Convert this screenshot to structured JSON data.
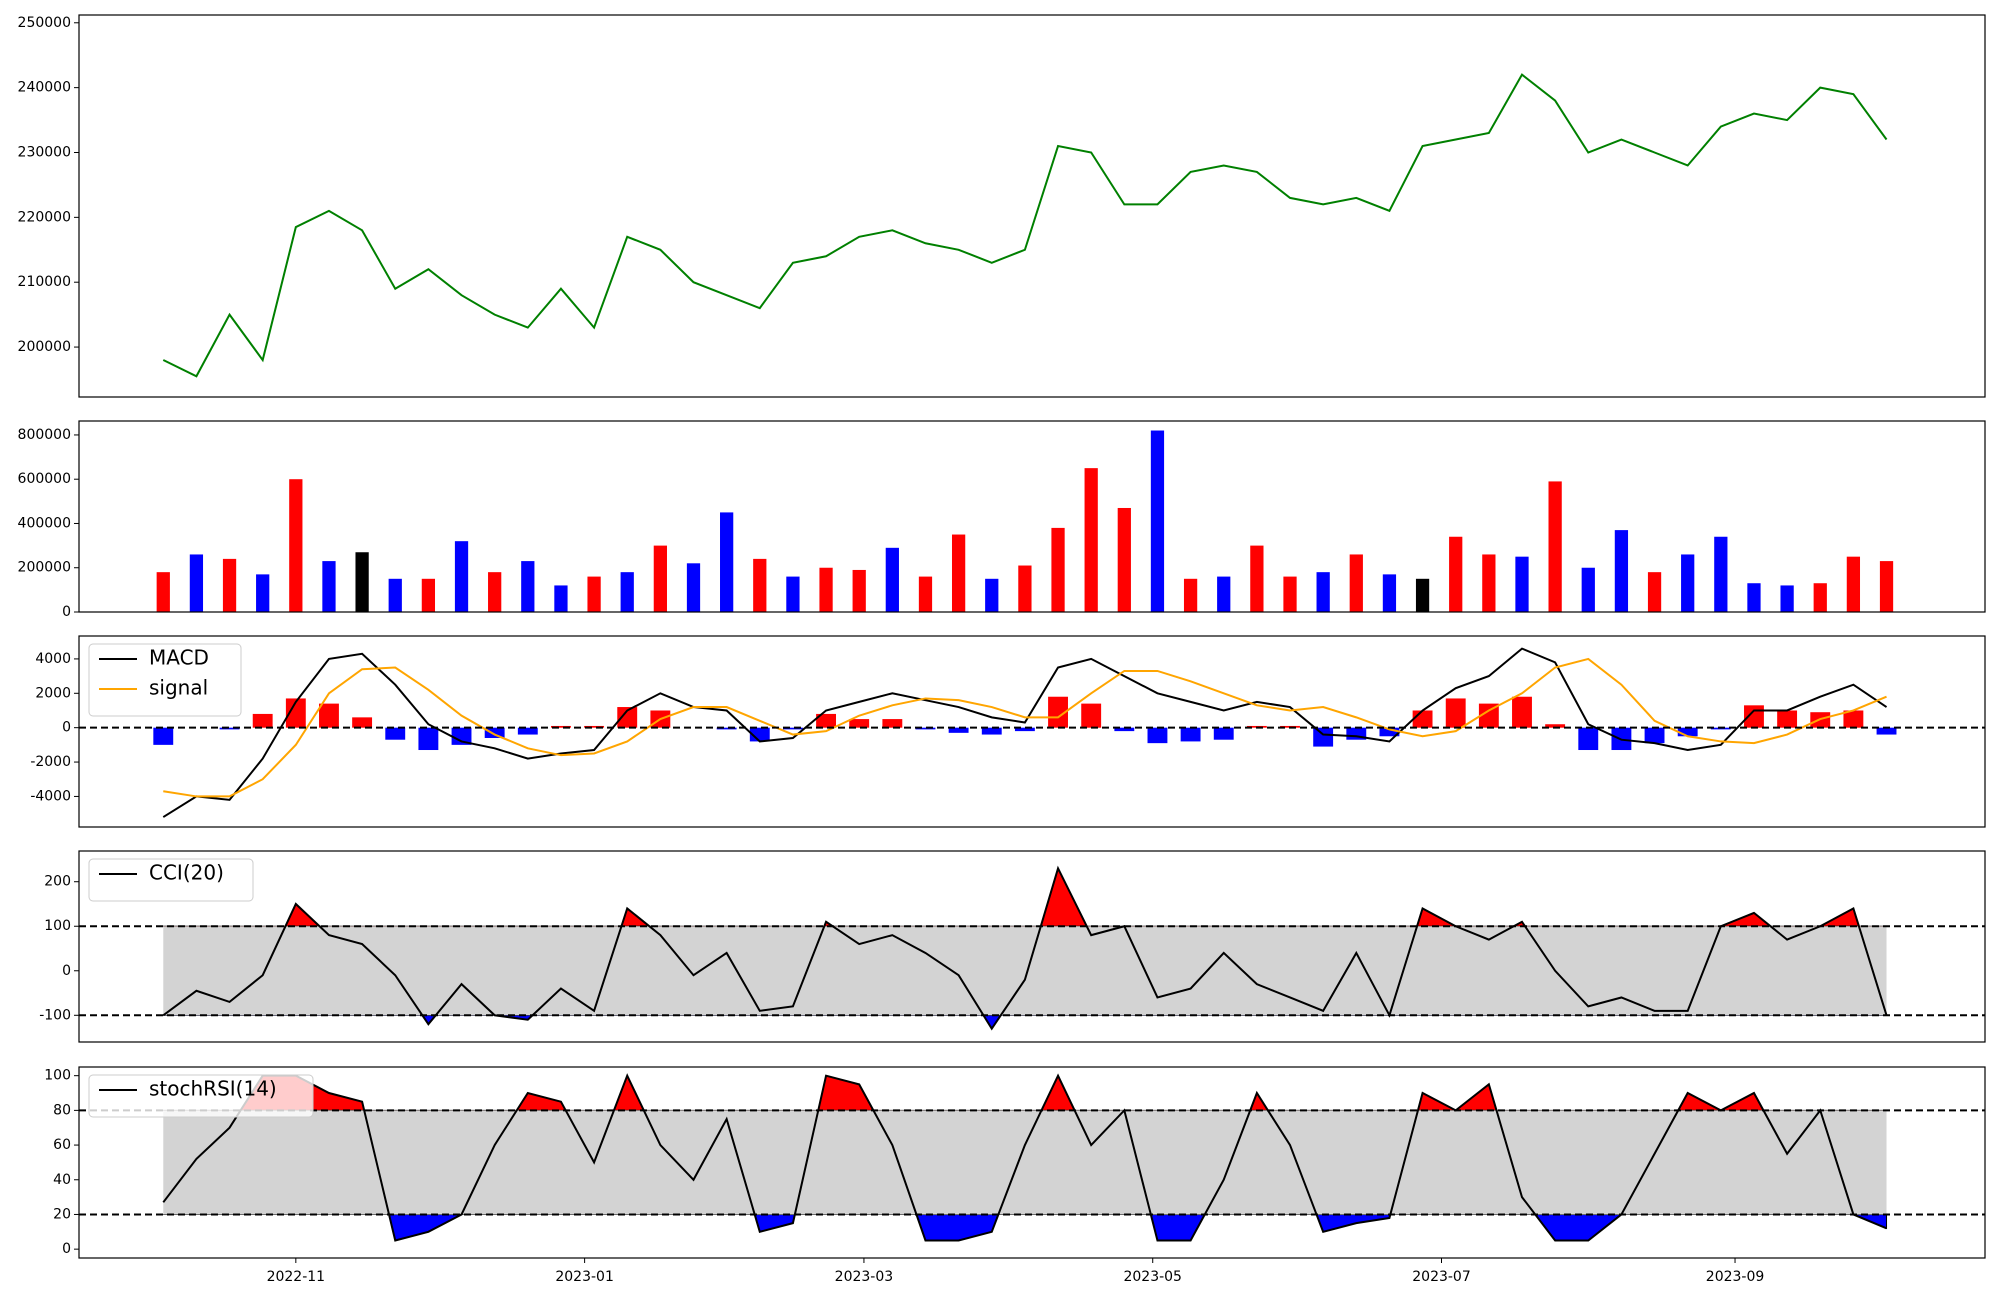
{
  "chart_data": [
    {
      "type": "line",
      "x": [
        3,
        10,
        17,
        24,
        31,
        38,
        45,
        52,
        59,
        66,
        73,
        80,
        87,
        94,
        101,
        108,
        115,
        122,
        129,
        136,
        143,
        150,
        157,
        164,
        171,
        178,
        185,
        192,
        199,
        206,
        213,
        220,
        227,
        234,
        241,
        248,
        255,
        262,
        269,
        276,
        283,
        290,
        297,
        304,
        311,
        318,
        325,
        332,
        339,
        346,
        353,
        360,
        367
      ],
      "series": [
        {
          "color": "#008000",
          "values": [
            198000,
            195500,
            205000,
            198000,
            218500,
            221000,
            218000,
            209000,
            212000,
            208000,
            205000,
            203000,
            209000,
            203000,
            217000,
            215000,
            210000,
            208000,
            206000,
            213000,
            214000,
            217000,
            218000,
            216000,
            215000,
            213000,
            215000,
            231000,
            230000,
            222000,
            222000,
            227000,
            228000,
            227000,
            223000,
            222000,
            223000,
            221000,
            231000,
            232000,
            233000,
            242000,
            238000,
            230000,
            232000,
            230000,
            228000,
            234000,
            236000,
            235000,
            240000,
            239000,
            232000
          ]
        }
      ],
      "xlim": [
        -14.8,
        387.8
      ],
      "ylim": [
        192300,
        251200
      ],
      "yticks": [
        200000,
        210000,
        220000,
        230000,
        240000,
        250000
      ]
    },
    {
      "type": "bar",
      "x": [
        3,
        10,
        17,
        24,
        31,
        38,
        45,
        52,
        59,
        66,
        73,
        80,
        87,
        94,
        101,
        108,
        115,
        122,
        129,
        136,
        143,
        150,
        157,
        164,
        171,
        178,
        185,
        192,
        199,
        206,
        213,
        220,
        227,
        234,
        241,
        248,
        255,
        262,
        269,
        276,
        283,
        290,
        297,
        304,
        311,
        318,
        325,
        332,
        339,
        346,
        353,
        360,
        367
      ],
      "values": [
        180000,
        260000,
        240000,
        170000,
        600000,
        230000,
        270000,
        150000,
        150000,
        320000,
        180000,
        230000,
        120000,
        160000,
        180000,
        300000,
        220000,
        450000,
        240000,
        160000,
        200000,
        190000,
        290000,
        160000,
        350000,
        150000,
        210000,
        380000,
        650000,
        470000,
        820000,
        150000,
        160000,
        300000,
        160000,
        180000,
        260000,
        170000,
        150000,
        340000,
        260000,
        250000,
        590000,
        200000,
        370000,
        180000,
        260000,
        340000,
        130000,
        120000,
        130000,
        250000,
        230000
      ],
      "colors": [
        "#ff0000",
        "#0000ff",
        "#ff0000",
        "#0000ff",
        "#ff0000",
        "#0000ff",
        "#000000",
        "#0000ff",
        "#ff0000",
        "#0000ff",
        "#ff0000",
        "#0000ff",
        "#0000ff",
        "#ff0000",
        "#0000ff",
        "#ff0000",
        "#0000ff",
        "#0000ff",
        "#ff0000",
        "#0000ff",
        "#ff0000",
        "#ff0000",
        "#0000ff",
        "#ff0000",
        "#ff0000",
        "#0000ff",
        "#ff0000",
        "#ff0000",
        "#ff0000",
        "#ff0000",
        "#0000ff",
        "#ff0000",
        "#0000ff",
        "#ff0000",
        "#ff0000",
        "#0000ff",
        "#ff0000",
        "#0000ff",
        "#000000",
        "#ff0000",
        "#ff0000",
        "#0000ff",
        "#ff0000",
        "#0000ff",
        "#0000ff",
        "#ff0000",
        "#0000ff",
        "#0000ff",
        "#0000ff",
        "#0000ff",
        "#ff0000",
        "#ff0000",
        "#ff0000"
      ],
      "xlim": [
        -14.8,
        387.8
      ],
      "ylim": [
        0,
        863000
      ],
      "yticks": [
        0,
        200000,
        400000,
        600000,
        800000
      ]
    },
    {
      "type": "line",
      "x": [
        3,
        10,
        17,
        24,
        31,
        38,
        45,
        52,
        59,
        66,
        73,
        80,
        87,
        94,
        101,
        108,
        115,
        122,
        129,
        136,
        143,
        150,
        157,
        164,
        171,
        178,
        185,
        192,
        199,
        206,
        213,
        220,
        227,
        234,
        241,
        248,
        255,
        262,
        269,
        276,
        283,
        290,
        297,
        304,
        311,
        318,
        325,
        332,
        339,
        346,
        353,
        360,
        367
      ],
      "series": [
        {
          "name": "MACD",
          "color": "#000000",
          "values": [
            -5200,
            -4000,
            -4200,
            -1800,
            1500,
            4000,
            4300,
            2500,
            200,
            -800,
            -1200,
            -1800,
            -1500,
            -1300,
            1000,
            2000,
            1200,
            1000,
            -800,
            -600,
            1000,
            1500,
            2000,
            1600,
            1200,
            600,
            300,
            3500,
            4000,
            3000,
            2000,
            1500,
            1000,
            1500,
            1200,
            -400,
            -500,
            -800,
            1000,
            2300,
            3000,
            4600,
            3800,
            200,
            -700,
            -900,
            -1300,
            -1000,
            1000,
            1000,
            1800,
            2500,
            1200
          ]
        },
        {
          "name": "signal",
          "color": "#ffa500",
          "values": [
            -3700,
            -4000,
            -4000,
            -3000,
            -1000,
            2000,
            3400,
            3500,
            2200,
            700,
            -400,
            -1200,
            -1600,
            -1500,
            -800,
            500,
            1200,
            1200,
            400,
            -400,
            -200,
            700,
            1300,
            1700,
            1600,
            1200,
            600,
            600,
            2000,
            3300,
            3300,
            2700,
            2000,
            1300,
            1000,
            1200,
            600,
            -100,
            -500,
            -200,
            1000,
            2000,
            3500,
            4000,
            2500,
            400,
            -500,
            -800,
            -900,
            -400,
            500,
            1000,
            1800
          ]
        }
      ],
      "histogram": {
        "values": [
          -1000,
          0,
          -100,
          800,
          1700,
          1400,
          600,
          -700,
          -1300,
          -1000,
          -600,
          -400,
          100,
          100,
          1200,
          1000,
          0,
          -100,
          -800,
          -100,
          800,
          500,
          500,
          -100,
          -300,
          -400,
          -200,
          1800,
          1400,
          -200,
          -900,
          -800,
          -700,
          100,
          100,
          -1100,
          -700,
          -500,
          1000,
          1700,
          1400,
          1800,
          200,
          -1300,
          -1300,
          -900,
          -500,
          -100,
          1300,
          1000,
          900,
          1000,
          -400
        ],
        "pos_color": "#ff0000",
        "neg_color": "#0000ff"
      },
      "hlines": [
        0
      ],
      "legend": "upper left",
      "xlim": [
        -14.8,
        387.8
      ],
      "ylim": [
        -5778,
        5333
      ],
      "yticks": [
        -4000,
        -2000,
        0,
        2000,
        4000
      ]
    },
    {
      "type": "line",
      "x": [
        3,
        10,
        17,
        24,
        31,
        38,
        45,
        52,
        59,
        66,
        73,
        80,
        87,
        94,
        101,
        108,
        115,
        122,
        129,
        136,
        143,
        150,
        157,
        164,
        171,
        178,
        185,
        192,
        199,
        206,
        213,
        220,
        227,
        234,
        241,
        248,
        255,
        262,
        269,
        276,
        283,
        290,
        297,
        304,
        311,
        318,
        325,
        332,
        339,
        346,
        353,
        360,
        367
      ],
      "series": [
        {
          "name": "CCI(20)",
          "color": "#000000",
          "values": [
            -100,
            -45,
            -70,
            -10,
            150,
            80,
            60,
            -10,
            -120,
            -30,
            -100,
            -110,
            -40,
            -90,
            140,
            80,
            -10,
            40,
            -90,
            -80,
            110,
            60,
            80,
            40,
            -10,
            -130,
            -20,
            230,
            80,
            100,
            -60,
            -40,
            40,
            -30,
            -60,
            -90,
            40,
            -100,
            140,
            100,
            70,
            110,
            0,
            -80,
            -60,
            -90,
            -90,
            100,
            130,
            70,
            100,
            140,
            -100
          ]
        }
      ],
      "band": [
        -100,
        100
      ],
      "band_color": "#d3d3d3",
      "above_color": "#ff0000",
      "below_color": "#0000ff",
      "legend": "upper left",
      "xlim": [
        -14.8,
        387.8
      ],
      "ylim": [
        -160,
        269
      ],
      "yticks": [
        -100,
        0,
        100,
        200
      ]
    },
    {
      "type": "line",
      "x": [
        3,
        10,
        17,
        24,
        31,
        38,
        45,
        52,
        59,
        66,
        73,
        80,
        87,
        94,
        101,
        108,
        115,
        122,
        129,
        136,
        143,
        150,
        157,
        164,
        171,
        178,
        185,
        192,
        199,
        206,
        213,
        220,
        227,
        234,
        241,
        248,
        255,
        262,
        269,
        276,
        283,
        290,
        297,
        304,
        311,
        318,
        325,
        332,
        339,
        346,
        353,
        360,
        367
      ],
      "series": [
        {
          "name": "stochRSI(14)",
          "color": "#000000",
          "values": [
            27,
            52,
            70,
            100,
            100,
            90,
            85,
            5,
            10,
            20,
            60,
            90,
            85,
            50,
            100,
            60,
            40,
            75,
            10,
            15,
            100,
            95,
            60,
            5,
            5,
            10,
            60,
            100,
            60,
            80,
            5,
            5,
            40,
            90,
            60,
            10,
            15,
            18,
            90,
            80,
            95,
            30,
            5,
            5,
            20,
            55,
            90,
            80,
            90,
            55,
            80,
            20,
            12
          ]
        }
      ],
      "band": [
        20,
        80
      ],
      "band_color": "#d3d3d3",
      "above_color": "#ff0000",
      "below_color": "#0000ff",
      "legend": "upper left",
      "xlim": [
        -14.8,
        387.8
      ],
      "ylim": [
        -5.1,
        105
      ],
      "yticks": [
        0,
        20,
        40,
        60,
        80,
        100
      ],
      "xticks": [
        {
          "value": 31,
          "label": "2022-11"
        },
        {
          "value": 92,
          "label": "2023-01"
        },
        {
          "value": 151,
          "label": "2023-03"
        },
        {
          "value": 212,
          "label": "2023-05"
        },
        {
          "value": 273,
          "label": "2023-07"
        },
        {
          "value": 335,
          "label": "2023-09"
        }
      ]
    }
  ]
}
